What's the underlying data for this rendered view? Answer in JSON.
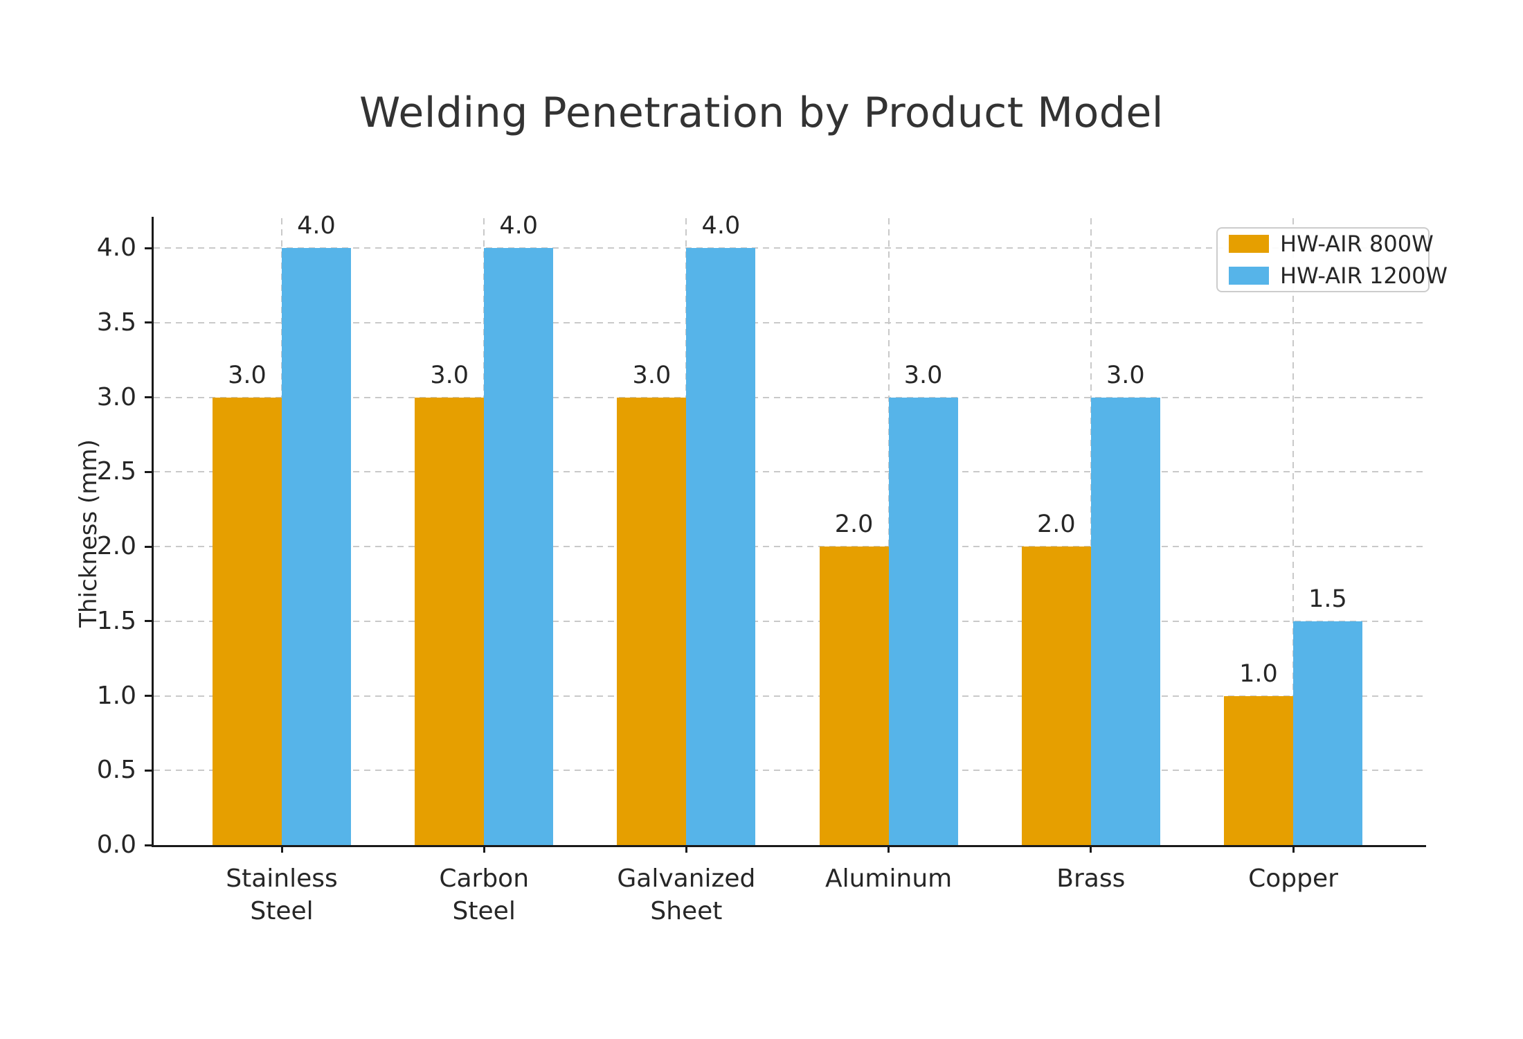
{
  "chart_data": {
    "type": "bar",
    "title": "Welding Penetration by Product Model",
    "ylabel": "Thickness (mm)",
    "xlabel": "",
    "categories": [
      "Stainless\nSteel",
      "Carbon\nSteel",
      "Galvanized\nSheet",
      "Aluminum",
      "Brass",
      "Copper"
    ],
    "series": [
      {
        "name": "HW-AIR 800W",
        "color": "#E69F00",
        "values": [
          3.0,
          3.0,
          3.0,
          2.0,
          2.0,
          1.0
        ]
      },
      {
        "name": "HW-AIR 1200W",
        "color": "#56B4E9",
        "values": [
          4.0,
          4.0,
          4.0,
          3.0,
          3.0,
          1.5
        ]
      }
    ],
    "ylim": [
      0,
      4.2
    ],
    "yticks": [
      0.0,
      0.5,
      1.0,
      1.5,
      2.0,
      2.5,
      3.0,
      3.5,
      4.0
    ],
    "grid": true,
    "grid_style": "dashed",
    "grid_color": "#c9c9c9",
    "legend_position": "upper right",
    "value_labels": true,
    "value_label_format": "one-decimal",
    "accent_colors": {
      "orange": "#E69F00",
      "blue": "#56B4E9"
    },
    "text_color": "#262626",
    "title_color": "#333333",
    "axis_color": "#1a1a1a",
    "background": "#ffffff"
  }
}
